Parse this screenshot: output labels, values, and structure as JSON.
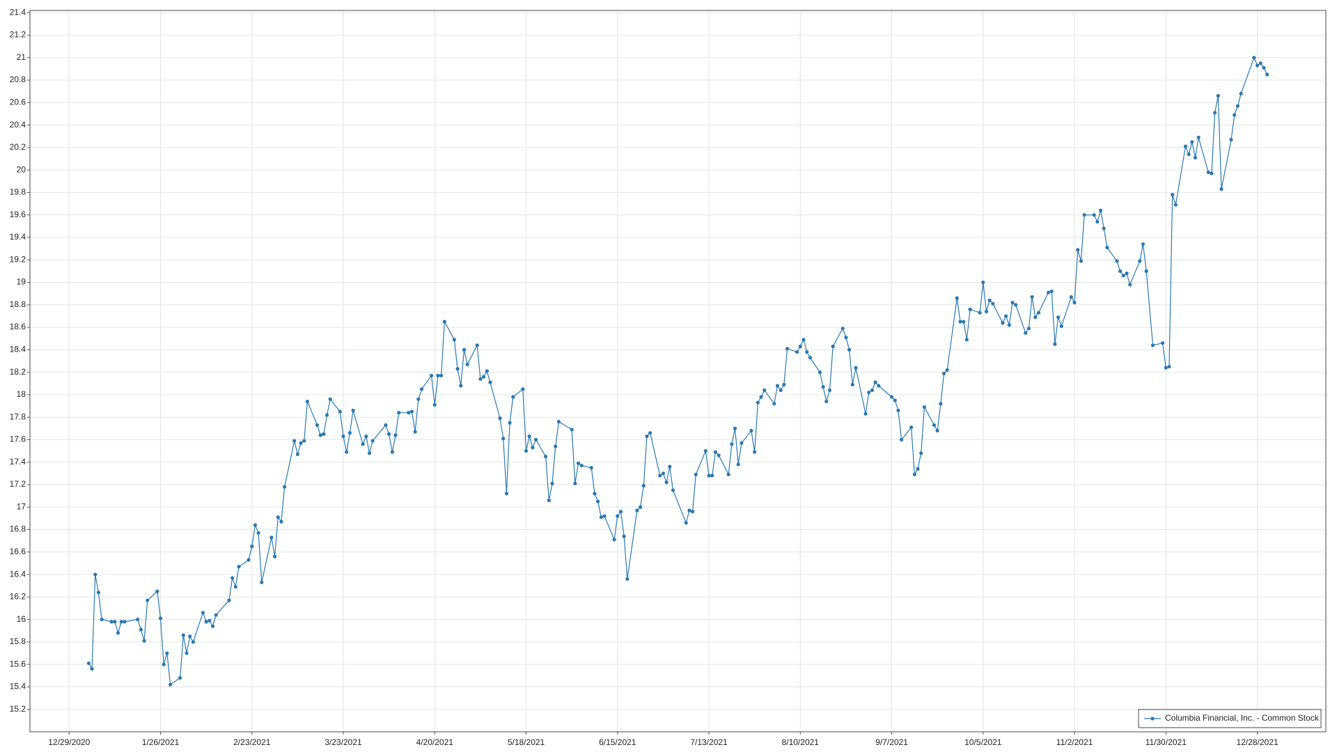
{
  "chart_data": {
    "type": "line",
    "series": [
      {
        "name": "Columbia Financial, Inc. - Common Stock",
        "color": "#2a78b2",
        "x": [
          "1/4/2021",
          "1/5/2021",
          "1/6/2021",
          "1/7/2021",
          "1/8/2021",
          "1/11/2021",
          "1/12/2021",
          "1/13/2021",
          "1/14/2021",
          "1/15/2021",
          "1/19/2021",
          "1/20/2021",
          "1/21/2021",
          "1/22/2021",
          "1/25/2021",
          "1/26/2021",
          "1/27/2021",
          "1/28/2021",
          "1/29/2021",
          "2/1/2021",
          "2/2/2021",
          "2/3/2021",
          "2/4/2021",
          "2/5/2021",
          "2/8/2021",
          "2/9/2021",
          "2/10/2021",
          "2/11/2021",
          "2/12/2021",
          "2/16/2021",
          "2/17/2021",
          "2/18/2021",
          "2/19/2021",
          "2/22/2021",
          "2/23/2021",
          "2/24/2021",
          "2/25/2021",
          "2/26/2021",
          "3/1/2021",
          "3/2/2021",
          "3/3/2021",
          "3/4/2021",
          "3/5/2021",
          "3/8/2021",
          "3/9/2021",
          "3/10/2021",
          "3/11/2021",
          "3/12/2021",
          "3/15/2021",
          "3/16/2021",
          "3/17/2021",
          "3/18/2021",
          "3/19/2021",
          "3/22/2021",
          "3/23/2021",
          "3/24/2021",
          "3/25/2021",
          "3/26/2021",
          "3/29/2021",
          "3/30/2021",
          "3/31/2021",
          "4/1/2021",
          "4/5/2021",
          "4/6/2021",
          "4/7/2021",
          "4/8/2021",
          "4/9/2021",
          "4/12/2021",
          "4/13/2021",
          "4/14/2021",
          "4/15/2021",
          "4/16/2021",
          "4/19/2021",
          "4/20/2021",
          "4/21/2021",
          "4/22/2021",
          "4/23/2021",
          "4/26/2021",
          "4/27/2021",
          "4/28/2021",
          "4/29/2021",
          "4/30/2021",
          "5/3/2021",
          "5/4/2021",
          "5/5/2021",
          "5/6/2021",
          "5/7/2021",
          "5/10/2021",
          "5/11/2021",
          "5/12/2021",
          "5/13/2021",
          "5/14/2021",
          "5/17/2021",
          "5/18/2021",
          "5/19/2021",
          "5/20/2021",
          "5/21/2021",
          "5/24/2021",
          "5/25/2021",
          "5/26/2021",
          "5/27/2021",
          "5/28/2021",
          "6/1/2021",
          "6/2/2021",
          "6/3/2021",
          "6/4/2021",
          "6/7/2021",
          "6/8/2021",
          "6/9/2021",
          "6/10/2021",
          "6/11/2021",
          "6/14/2021",
          "6/15/2021",
          "6/16/2021",
          "6/17/2021",
          "6/18/2021",
          "6/21/2021",
          "6/22/2021",
          "6/23/2021",
          "6/24/2021",
          "6/25/2021",
          "6/28/2021",
          "6/29/2021",
          "6/30/2021",
          "7/1/2021",
          "7/2/2021",
          "7/6/2021",
          "7/7/2021",
          "7/8/2021",
          "7/9/2021",
          "7/12/2021",
          "7/13/2021",
          "7/14/2021",
          "7/15/2021",
          "7/16/2021",
          "7/19/2021",
          "7/20/2021",
          "7/21/2021",
          "7/22/2021",
          "7/23/2021",
          "7/26/2021",
          "7/27/2021",
          "7/28/2021",
          "7/29/2021",
          "7/30/2021",
          "8/2/2021",
          "8/3/2021",
          "8/4/2021",
          "8/5/2021",
          "8/6/2021",
          "8/9/2021",
          "8/10/2021",
          "8/11/2021",
          "8/12/2021",
          "8/13/2021",
          "8/16/2021",
          "8/17/2021",
          "8/18/2021",
          "8/19/2021",
          "8/20/2021",
          "8/23/2021",
          "8/24/2021",
          "8/25/2021",
          "8/26/2021",
          "8/27/2021",
          "8/30/2021",
          "8/31/2021",
          "9/1/2021",
          "9/2/2021",
          "9/3/2021",
          "9/7/2021",
          "9/8/2021",
          "9/9/2021",
          "9/10/2021",
          "9/13/2021",
          "9/14/2021",
          "9/15/2021",
          "9/16/2021",
          "9/17/2021",
          "9/20/2021",
          "9/21/2021",
          "9/22/2021",
          "9/23/2021",
          "9/24/2021",
          "9/27/2021",
          "9/28/2021",
          "9/29/2021",
          "9/30/2021",
          "10/1/2021",
          "10/4/2021",
          "10/5/2021",
          "10/6/2021",
          "10/7/2021",
          "10/8/2021",
          "10/11/2021",
          "10/12/2021",
          "10/13/2021",
          "10/14/2021",
          "10/15/2021",
          "10/18/2021",
          "10/19/2021",
          "10/20/2021",
          "10/21/2021",
          "10/22/2021",
          "10/25/2021",
          "10/26/2021",
          "10/27/2021",
          "10/28/2021",
          "10/29/2021",
          "11/1/2021",
          "11/2/2021",
          "11/3/2021",
          "11/4/2021",
          "11/5/2021",
          "11/8/2021",
          "11/9/2021",
          "11/10/2021",
          "11/11/2021",
          "11/12/2021",
          "11/15/2021",
          "11/16/2021",
          "11/17/2021",
          "11/18/2021",
          "11/19/2021",
          "11/22/2021",
          "11/23/2021",
          "11/24/2021",
          "11/26/2021",
          "11/29/2021",
          "11/30/2021",
          "12/1/2021",
          "12/2/2021",
          "12/3/2021",
          "12/6/2021",
          "12/7/2021",
          "12/8/2021",
          "12/9/2021",
          "12/10/2021",
          "12/13/2021",
          "12/14/2021",
          "12/15/2021",
          "12/16/2021",
          "12/17/2021",
          "12/20/2021",
          "12/21/2021",
          "12/22/2021",
          "12/23/2021",
          "12/27/2021",
          "12/28/2021",
          "12/29/2021",
          "12/30/2021",
          "12/31/2021"
        ],
        "values": [
          15.61,
          15.56,
          16.4,
          16.24,
          16.0,
          15.98,
          15.98,
          15.88,
          15.98,
          15.98,
          16.0,
          15.91,
          15.81,
          16.17,
          16.25,
          16.01,
          15.6,
          15.7,
          15.42,
          15.48,
          15.86,
          15.7,
          15.85,
          15.8,
          16.06,
          15.98,
          15.99,
          15.94,
          16.04,
          16.17,
          16.37,
          16.29,
          16.47,
          16.53,
          16.65,
          16.84,
          16.77,
          16.33,
          16.73,
          16.56,
          16.91,
          16.87,
          17.18,
          17.59,
          17.47,
          17.57,
          17.59,
          17.94,
          17.73,
          17.64,
          17.65,
          17.82,
          17.96,
          17.85,
          17.63,
          17.49,
          17.66,
          17.86,
          17.56,
          17.63,
          17.48,
          17.59,
          17.73,
          17.65,
          17.49,
          17.64,
          17.84,
          17.84,
          17.85,
          17.67,
          17.96,
          18.05,
          18.17,
          17.91,
          18.17,
          18.17,
          18.65,
          18.49,
          18.23,
          18.08,
          18.4,
          18.27,
          18.44,
          18.14,
          18.16,
          18.21,
          18.11,
          17.79,
          17.61,
          17.12,
          17.75,
          17.98,
          18.05,
          17.5,
          17.63,
          17.53,
          17.6,
          17.45,
          17.06,
          17.21,
          17.54,
          17.76,
          17.69,
          17.21,
          17.39,
          17.37,
          17.35,
          17.12,
          17.05,
          16.91,
          16.92,
          16.71,
          16.92,
          16.96,
          16.74,
          16.36,
          16.97,
          17.0,
          17.19,
          17.63,
          17.66,
          17.28,
          17.3,
          17.22,
          17.36,
          17.15,
          16.86,
          16.97,
          16.96,
          17.29,
          17.5,
          17.28,
          17.28,
          17.49,
          17.46,
          17.29,
          17.56,
          17.7,
          17.38,
          17.57,
          17.68,
          17.49,
          17.93,
          17.98,
          18.04,
          17.92,
          18.08,
          18.04,
          18.09,
          18.41,
          18.38,
          18.43,
          18.49,
          18.38,
          18.33,
          18.2,
          18.07,
          17.94,
          18.04,
          18.43,
          18.59,
          18.51,
          18.4,
          18.09,
          18.24,
          17.83,
          18.02,
          18.04,
          18.11,
          18.08,
          17.98,
          17.95,
          17.86,
          17.6,
          17.71,
          17.29,
          17.34,
          17.48,
          17.89,
          17.73,
          17.68,
          17.92,
          18.19,
          18.22,
          18.86,
          18.65,
          18.65,
          18.49,
          18.76,
          18.73,
          19.0,
          18.74,
          18.84,
          18.81,
          18.64,
          18.7,
          18.62,
          18.82,
          18.8,
          18.55,
          18.59,
          18.87,
          18.69,
          18.73,
          18.91,
          18.92,
          18.45,
          18.69,
          18.61,
          18.87,
          18.82,
          19.29,
          19.19,
          19.6,
          19.6,
          19.54,
          19.64,
          19.48,
          19.31,
          19.19,
          19.1,
          19.06,
          19.08,
          18.98,
          19.19,
          19.34,
          19.1,
          18.44,
          18.46,
          18.24,
          18.25,
          19.78,
          19.69,
          20.21,
          20.14,
          20.25,
          20.11,
          20.29,
          19.98,
          19.97,
          20.51,
          20.66,
          19.83,
          20.27,
          20.49,
          20.57,
          20.68,
          21.0,
          20.93,
          20.95,
          20.91,
          20.85
        ]
      }
    ],
    "xlim": [
      "12/17/2020",
      "1/18/2022"
    ],
    "xticks": [
      "12/29/2020",
      "1/26/2021",
      "2/23/2021",
      "3/23/2021",
      "4/20/2021",
      "5/18/2021",
      "6/15/2021",
      "7/13/2021",
      "8/10/2021",
      "9/7/2021",
      "10/5/2021",
      "11/2/2021",
      "11/30/2021",
      "12/28/2021"
    ],
    "ylim": [
      15,
      21.42
    ],
    "yticks": [
      15.2,
      15.4,
      15.6,
      15.8,
      16,
      16.2,
      16.4,
      16.6,
      16.8,
      17,
      17.2,
      17.4,
      17.6,
      17.8,
      18,
      18.2,
      18.4,
      18.6,
      18.8,
      19,
      19.2,
      19.4,
      19.6,
      19.8,
      20,
      20.2,
      20.4,
      20.6,
      20.8,
      21,
      21.2,
      21.4
    ],
    "grid": true,
    "markers": true,
    "legend": "lower right"
  }
}
